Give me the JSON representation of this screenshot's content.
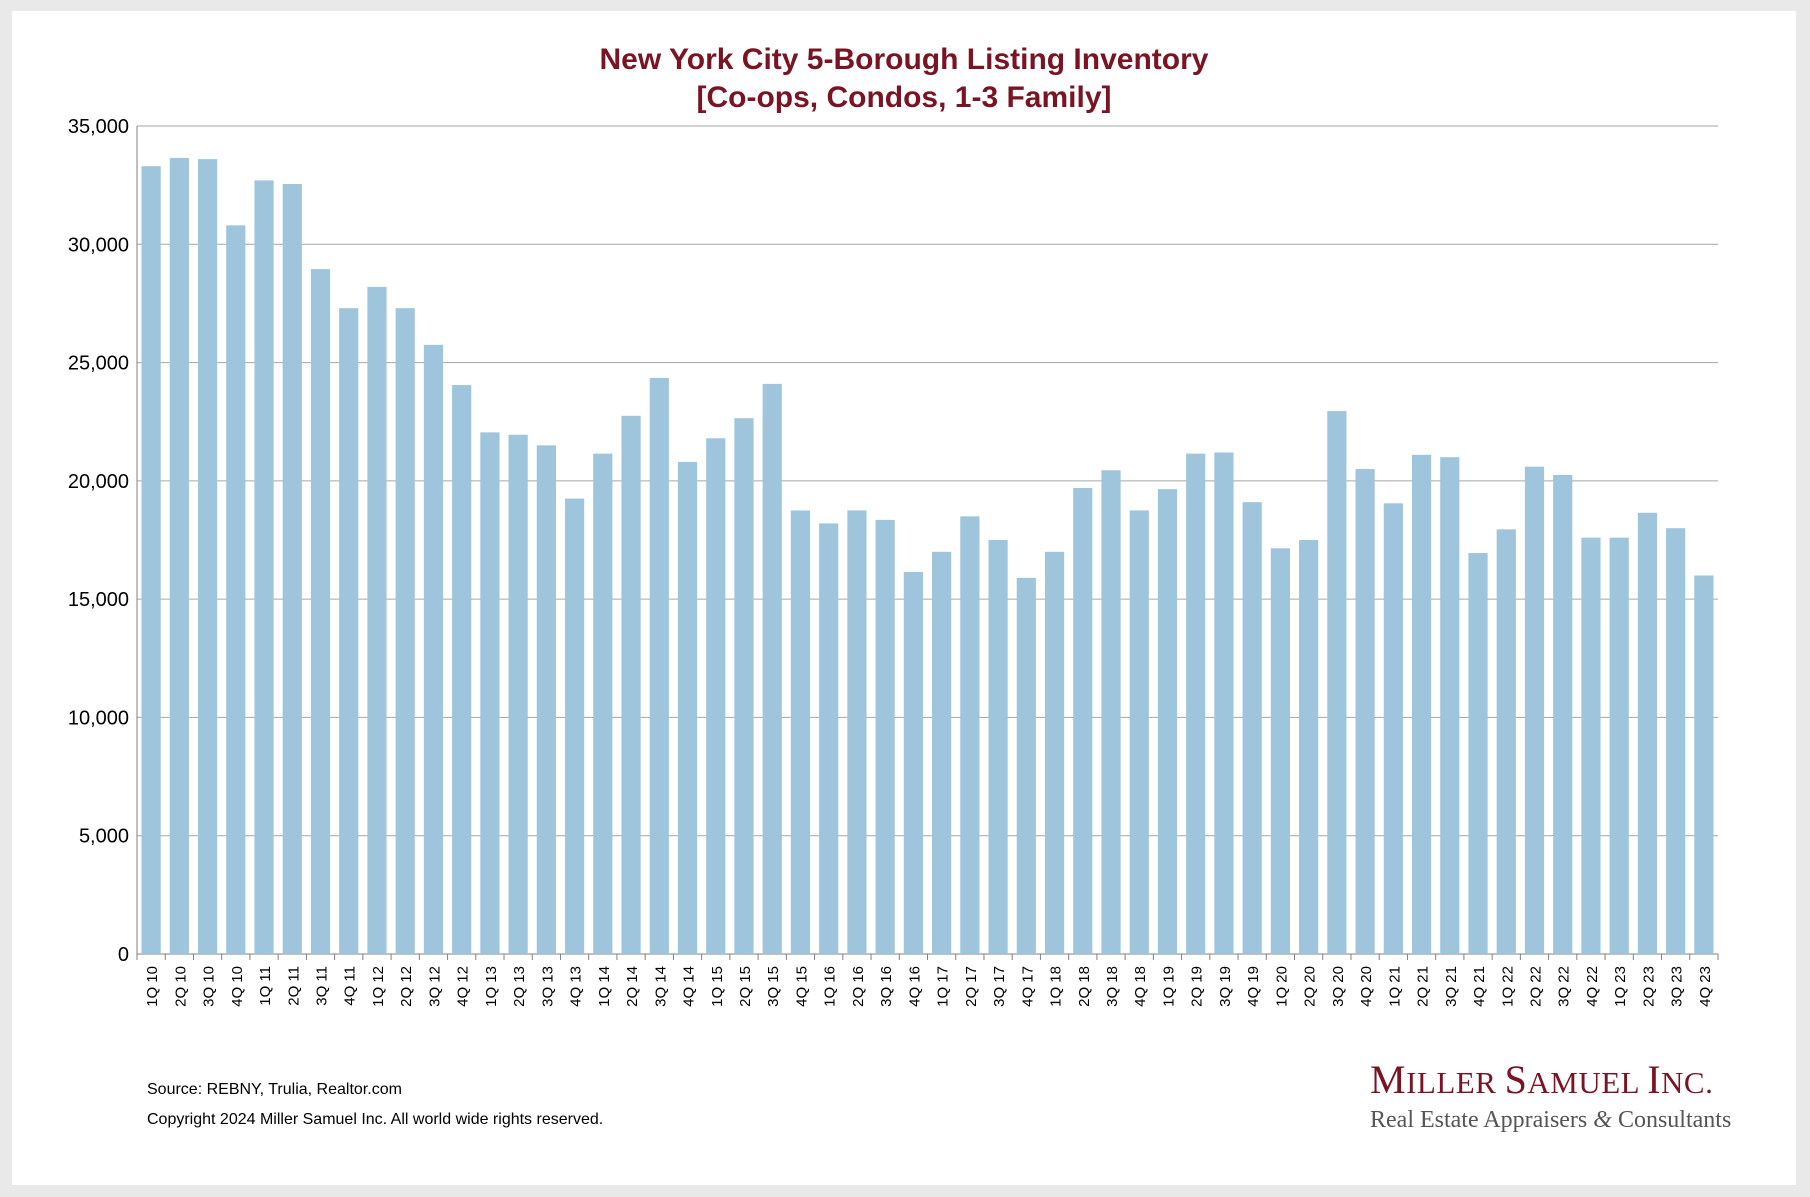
{
  "chart_data": {
    "type": "bar",
    "title": "New York City 5-Borough Listing Inventory",
    "subtitle": "[Co-ops, Condos, 1-3 Family]",
    "categories": [
      "1Q 10",
      "2Q 10",
      "3Q 10",
      "4Q 10",
      "1Q 11",
      "2Q 11",
      "3Q 11",
      "4Q 11",
      "1Q 12",
      "2Q 12",
      "3Q 12",
      "4Q 12",
      "1Q 13",
      "2Q 13",
      "3Q 13",
      "4Q 13",
      "1Q 14",
      "2Q 14",
      "3Q 14",
      "4Q 14",
      "1Q 15",
      "2Q 15",
      "3Q 15",
      "4Q 15",
      "1Q 16",
      "2Q 16",
      "3Q 16",
      "4Q 16",
      "1Q 17",
      "2Q 17",
      "3Q 17",
      "4Q 17",
      "1Q 18",
      "2Q 18",
      "3Q 18",
      "4Q 18",
      "1Q 19",
      "2Q 19",
      "3Q 19",
      "4Q 19",
      "1Q 20",
      "2Q 20",
      "3Q 20",
      "4Q 20",
      "1Q 21",
      "2Q 21",
      "3Q 21",
      "4Q 21",
      "1Q 22",
      "2Q 22",
      "3Q 22",
      "4Q 22",
      "1Q 23",
      "2Q 23",
      "3Q 23",
      "4Q 23"
    ],
    "values": [
      33300,
      33650,
      33600,
      30800,
      32700,
      32550,
      28950,
      27300,
      28200,
      27300,
      25750,
      24050,
      22050,
      21950,
      21500,
      19250,
      21150,
      22750,
      24350,
      20800,
      21800,
      22650,
      24100,
      18750,
      18200,
      18750,
      18350,
      16150,
      17000,
      18500,
      17500,
      15900,
      17000,
      19700,
      20450,
      18750,
      19650,
      21150,
      21200,
      19100,
      17150,
      17500,
      22950,
      20500,
      19050,
      21100,
      21000,
      16950,
      17950,
      20600,
      20250,
      17600,
      17600,
      18650,
      18000,
      16000
    ],
    "ylim": [
      0,
      35000
    ],
    "yticks": [
      0,
      5000,
      10000,
      15000,
      20000,
      25000,
      30000,
      35000
    ],
    "ytick_labels": [
      "0",
      "5,000",
      "10,000",
      "15,000",
      "20,000",
      "25,000",
      "30,000",
      "35,000"
    ],
    "xlabel": "",
    "ylabel": "",
    "grid": true,
    "bar_color": "#9fc5dc",
    "title_color": "#7a1424"
  },
  "footer": {
    "source": "Source: REBNY, Trulia, Realtor.com",
    "copyright": "Copyright 2024 Miller Samuel Inc.  All world wide rights reserved."
  },
  "logo": {
    "name_parts": [
      "M",
      "ILLER ",
      "S",
      "AMUEL ",
      "I",
      "NC."
    ],
    "tagline_before": "Real Estate Appraisers ",
    "tagline_amp": "&",
    "tagline_after": " Consultants"
  }
}
